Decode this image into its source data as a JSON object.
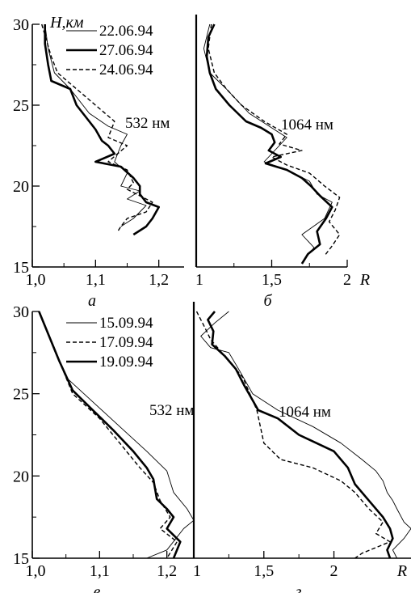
{
  "styles": {
    "line_color": "#000000",
    "thin": {
      "width": 0.9,
      "dash": ""
    },
    "thick": {
      "width": 2.6,
      "dash": ""
    },
    "dashed": {
      "width": 1.4,
      "dash": "5,3"
    }
  },
  "chart_data": [
    {
      "id": "a",
      "type": "line",
      "panel_label": "а",
      "wavelength": "532 нм",
      "ylabel": "H,км",
      "xlabel": "",
      "xlim": [
        1.0,
        1.24
      ],
      "ylim": [
        15,
        30
      ],
      "xticks": [
        1.0,
        1.1,
        1.2
      ],
      "xtick_labels": [
        "1,0",
        "1,1",
        "1,2"
      ],
      "yticks": [
        15,
        20,
        25,
        30
      ],
      "ytick_labels": [
        "15",
        "20",
        "25",
        "30"
      ],
      "legend": "top-left",
      "series": [
        {
          "name": "22.06.94",
          "style": "thin",
          "points": [
            [
              1.02,
              30
            ],
            [
              1.025,
              28.5
            ],
            [
              1.035,
              27
            ],
            [
              1.06,
              26
            ],
            [
              1.09,
              24.5
            ],
            [
              1.12,
              23.7
            ],
            [
              1.15,
              23.2
            ],
            [
              1.14,
              22.5
            ],
            [
              1.13,
              21.5
            ],
            [
              1.15,
              20.8
            ],
            [
              1.14,
              20
            ],
            [
              1.17,
              19.7
            ],
            [
              1.15,
              19.2
            ],
            [
              1.18,
              18.8
            ],
            [
              1.16,
              18
            ],
            [
              1.14,
              17.5
            ]
          ]
        },
        {
          "name": "27.06.94",
          "style": "thick",
          "points": [
            [
              1.02,
              30
            ],
            [
              1.02,
              28.8
            ],
            [
              1.025,
              27.5
            ],
            [
              1.03,
              26.5
            ],
            [
              1.06,
              26
            ],
            [
              1.07,
              25
            ],
            [
              1.09,
              24
            ],
            [
              1.1,
              23.5
            ],
            [
              1.11,
              22.8
            ],
            [
              1.12,
              22.5
            ],
            [
              1.13,
              22
            ],
            [
              1.1,
              21.5
            ],
            [
              1.14,
              21.2
            ],
            [
              1.16,
              20.5
            ],
            [
              1.17,
              20
            ],
            [
              1.17,
              19.5
            ],
            [
              1.18,
              19
            ],
            [
              1.2,
              18.7
            ],
            [
              1.19,
              18
            ],
            [
              1.18,
              17.5
            ],
            [
              1.16,
              17
            ]
          ]
        },
        {
          "name": "24.06.94",
          "style": "dashed",
          "points": [
            [
              1.015,
              30
            ],
            [
              1.03,
              28
            ],
            [
              1.04,
              27
            ],
            [
              1.07,
              26
            ],
            [
              1.1,
              25
            ],
            [
              1.13,
              24
            ],
            [
              1.12,
              23
            ],
            [
              1.15,
              22.5
            ],
            [
              1.12,
              21.5
            ],
            [
              1.15,
              21
            ],
            [
              1.16,
              20.2
            ],
            [
              1.15,
              19.8
            ],
            [
              1.19,
              19
            ],
            [
              1.18,
              18.4
            ],
            [
              1.15,
              18
            ],
            [
              1.14,
              17.5
            ],
            [
              1.135,
              17.2
            ]
          ]
        }
      ]
    },
    {
      "id": "б",
      "type": "line",
      "panel_label": "б",
      "wavelength": "1064 нм",
      "xlabel": "R",
      "xlim": [
        1.0,
        2.0
      ],
      "ylim": [
        15,
        30
      ],
      "xticks": [
        1.0,
        1.5,
        2.0
      ],
      "xtick_labels": [
        "1",
        "1,5",
        "2"
      ],
      "series": [
        {
          "name": "22.06.94",
          "style": "thin",
          "points": [
            [
              1.09,
              30
            ],
            [
              1.05,
              28.5
            ],
            [
              1.09,
              27
            ],
            [
              1.2,
              26
            ],
            [
              1.35,
              24.5
            ],
            [
              1.5,
              23.6
            ],
            [
              1.6,
              23
            ],
            [
              1.55,
              22.5
            ],
            [
              1.45,
              21.5
            ],
            [
              1.6,
              21
            ],
            [
              1.75,
              20.3
            ],
            [
              1.8,
              19.5
            ],
            [
              1.9,
              19
            ],
            [
              1.85,
              18
            ],
            [
              1.7,
              17
            ],
            [
              1.78,
              16.2
            ],
            [
              1.72,
              15.5
            ]
          ]
        },
        {
          "name": "27.06.94",
          "style": "thick",
          "points": [
            [
              1.12,
              30
            ],
            [
              1.08,
              29.2
            ],
            [
              1.07,
              28
            ],
            [
              1.09,
              27
            ],
            [
              1.13,
              26
            ],
            [
              1.22,
              25
            ],
            [
              1.33,
              24
            ],
            [
              1.43,
              23.6
            ],
            [
              1.5,
              23.2
            ],
            [
              1.52,
              22.7
            ],
            [
              1.48,
              22.2
            ],
            [
              1.56,
              21.8
            ],
            [
              1.46,
              21.4
            ],
            [
              1.6,
              21
            ],
            [
              1.7,
              20.5
            ],
            [
              1.76,
              20
            ],
            [
              1.82,
              19.4
            ],
            [
              1.9,
              18.7
            ],
            [
              1.86,
              18
            ],
            [
              1.8,
              17.2
            ],
            [
              1.82,
              16.4
            ],
            [
              1.74,
              15.8
            ],
            [
              1.7,
              15.2
            ]
          ]
        },
        {
          "name": "24.06.94",
          "style": "dashed",
          "points": [
            [
              1.1,
              30
            ],
            [
              1.08,
              28.5
            ],
            [
              1.12,
              27
            ],
            [
              1.2,
              26
            ],
            [
              1.3,
              25
            ],
            [
              1.45,
              24
            ],
            [
              1.6,
              23.2
            ],
            [
              1.55,
              22.6
            ],
            [
              1.7,
              22.2
            ],
            [
              1.5,
              21.8
            ],
            [
              1.6,
              21.3
            ],
            [
              1.75,
              20.8
            ],
            [
              1.85,
              20
            ],
            [
              1.95,
              19.3
            ],
            [
              1.92,
              18.5
            ],
            [
              1.88,
              17.8
            ],
            [
              1.95,
              17
            ],
            [
              1.9,
              16.3
            ],
            [
              1.85,
              15.7
            ]
          ]
        }
      ]
    },
    {
      "id": "в",
      "type": "line",
      "panel_label": "в",
      "wavelength": "532 нм",
      "xlabel": "",
      "xlim": [
        1.0,
        1.24
      ],
      "ylim": [
        15,
        30
      ],
      "xticks": [
        1.0,
        1.1,
        1.2
      ],
      "xtick_labels": [
        "1,0",
        "1,1",
        "1,2"
      ],
      "yticks": [
        15,
        20,
        25,
        30
      ],
      "ytick_labels": [
        "15",
        "20",
        "25",
        "30"
      ],
      "legend": "top-left",
      "series": [
        {
          "name": "15.09.94",
          "style": "thin",
          "points": [
            [
              1.01,
              30
            ],
            [
              1.03,
              28
            ],
            [
              1.05,
              26
            ],
            [
              1.09,
              24.5
            ],
            [
              1.13,
              23
            ],
            [
              1.17,
              21.5
            ],
            [
              1.2,
              20.3
            ],
            [
              1.21,
              19
            ],
            [
              1.23,
              18
            ],
            [
              1.24,
              17.3
            ],
            [
              1.225,
              16.8
            ],
            [
              1.2,
              15.5
            ],
            [
              1.17,
              15
            ]
          ]
        },
        {
          "name": "17.09.94",
          "style": "dashed",
          "points": [
            [
              1.01,
              30
            ],
            [
              1.025,
              28.5
            ],
            [
              1.04,
              27
            ],
            [
              1.06,
              25
            ],
            [
              1.1,
              23.5
            ],
            [
              1.13,
              22
            ],
            [
              1.16,
              20.5
            ],
            [
              1.18,
              19.6
            ],
            [
              1.19,
              18.5
            ],
            [
              1.205,
              17.5
            ],
            [
              1.19,
              16.8
            ],
            [
              1.215,
              16
            ],
            [
              1.2,
              15
            ]
          ]
        },
        {
          "name": "19.09.94",
          "style": "thick",
          "points": [
            [
              1.01,
              30
            ],
            [
              1.025,
              28.5
            ],
            [
              1.04,
              27
            ],
            [
              1.06,
              25.2
            ],
            [
              1.09,
              24
            ],
            [
              1.12,
              22.8
            ],
            [
              1.15,
              21.5
            ],
            [
              1.17,
              20.5
            ],
            [
              1.18,
              19.8
            ],
            [
              1.185,
              18.6
            ],
            [
              1.2,
              18
            ],
            [
              1.21,
              17.5
            ],
            [
              1.2,
              16.8
            ],
            [
              1.22,
              16
            ],
            [
              1.21,
              15
            ]
          ]
        }
      ]
    },
    {
      "id": "г",
      "type": "line",
      "panel_label": "г",
      "wavelength": "1064 нм",
      "xlabel": "R",
      "xlim": [
        1.0,
        2.55
      ],
      "ylim": [
        15,
        30
      ],
      "xticks": [
        1.0,
        1.5,
        2.0
      ],
      "xtick_labels": [
        "1",
        "1,5",
        "2"
      ],
      "series": [
        {
          "name": "15.09.94",
          "style": "thin",
          "points": [
            [
              1.25,
              30
            ],
            [
              1.15,
              29.3
            ],
            [
              1.05,
              28.5
            ],
            [
              1.12,
              27.8
            ],
            [
              1.25,
              27.5
            ],
            [
              1.32,
              26.5
            ],
            [
              1.42,
              25
            ],
            [
              1.6,
              24
            ],
            [
              1.85,
              23
            ],
            [
              2.05,
              22
            ],
            [
              2.2,
              21
            ],
            [
              2.3,
              20.3
            ],
            [
              2.35,
              19.7
            ],
            [
              2.38,
              19
            ],
            [
              2.42,
              18.5
            ],
            [
              2.45,
              18
            ],
            [
              2.5,
              17.2
            ],
            [
              2.55,
              16.8
            ],
            [
              2.5,
              16.2
            ],
            [
              2.42,
              15.5
            ],
            [
              2.45,
              15
            ]
          ]
        },
        {
          "name": "17.09.94",
          "style": "dashed",
          "points": [
            [
              1.02,
              30
            ],
            [
              1.08,
              29
            ],
            [
              1.12,
              28.3
            ],
            [
              1.2,
              27.5
            ],
            [
              1.3,
              26.5
            ],
            [
              1.35,
              26
            ],
            [
              1.4,
              25
            ],
            [
              1.45,
              24
            ],
            [
              1.5,
              22
            ],
            [
              1.62,
              21
            ],
            [
              1.85,
              20.5
            ],
            [
              2.05,
              19.7
            ],
            [
              2.15,
              19
            ],
            [
              2.25,
              18
            ],
            [
              2.35,
              17.2
            ],
            [
              2.3,
              16.5
            ],
            [
              2.4,
              16
            ],
            [
              2.2,
              15.3
            ],
            [
              2.15,
              15
            ]
          ]
        },
        {
          "name": "19.09.94",
          "style": "thick",
          "points": [
            [
              1.15,
              30
            ],
            [
              1.1,
              29.5
            ],
            [
              1.14,
              28.8
            ],
            [
              1.13,
              28
            ],
            [
              1.22,
              27.3
            ],
            [
              1.3,
              26.5
            ],
            [
              1.36,
              25.5
            ],
            [
              1.46,
              24
            ],
            [
              1.6,
              23.5
            ],
            [
              1.75,
              22.5
            ],
            [
              2.0,
              21.5
            ],
            [
              2.1,
              20.5
            ],
            [
              2.15,
              19.5
            ],
            [
              2.25,
              18.5
            ],
            [
              2.35,
              17.5
            ],
            [
              2.4,
              16.8
            ],
            [
              2.42,
              16.2
            ],
            [
              2.38,
              15.5
            ],
            [
              2.4,
              15
            ]
          ]
        }
      ]
    }
  ]
}
